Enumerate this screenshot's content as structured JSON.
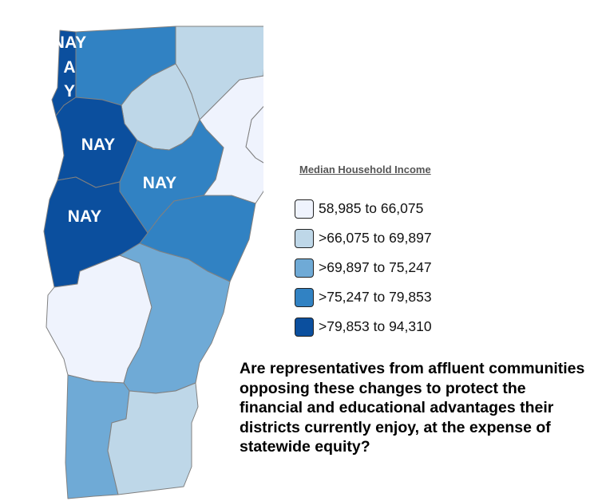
{
  "legend": {
    "title": "Median Household Income",
    "items": [
      {
        "label": "58,985 to 66,075",
        "color": "#eff3fd"
      },
      {
        "label": ">66,075 to 69,897",
        "color": "#bed7e8"
      },
      {
        "label": ">69,897 to 75,247",
        "color": "#6faad6"
      },
      {
        "label": ">75,247 to 79,853",
        "color": "#3182c3"
      },
      {
        "label": ">79,853 to 94,310",
        "color": "#0b4f9e"
      }
    ]
  },
  "map": {
    "counties": [
      {
        "id": "grand-isle",
        "color": "#0b4f9e",
        "vote": "NAY"
      },
      {
        "id": "franklin",
        "color": "#3182c3"
      },
      {
        "id": "orleans",
        "color": "#bed7e8"
      },
      {
        "id": "essex",
        "color": "#eff3fd"
      },
      {
        "id": "lamoille",
        "color": "#bed7e8"
      },
      {
        "id": "caledonia",
        "color": "#eff3fd"
      },
      {
        "id": "chittenden",
        "color": "#0b4f9e",
        "vote": "NAY"
      },
      {
        "id": "washington",
        "color": "#3182c3",
        "vote": "NAY"
      },
      {
        "id": "orange",
        "color": "#3182c3"
      },
      {
        "id": "addison",
        "color": "#0b4f9e",
        "vote": "NAY"
      },
      {
        "id": "rutland",
        "color": "#eff3fd"
      },
      {
        "id": "windsor",
        "color": "#6faad6"
      },
      {
        "id": "bennington",
        "color": "#6faad6"
      },
      {
        "id": "windham",
        "color": "#bed7e8"
      }
    ]
  },
  "question": "Are representatives from affluent communities opposing these changes to protect the financial and educational advantages their districts currently enjoy, at the expense of statewide equity?"
}
